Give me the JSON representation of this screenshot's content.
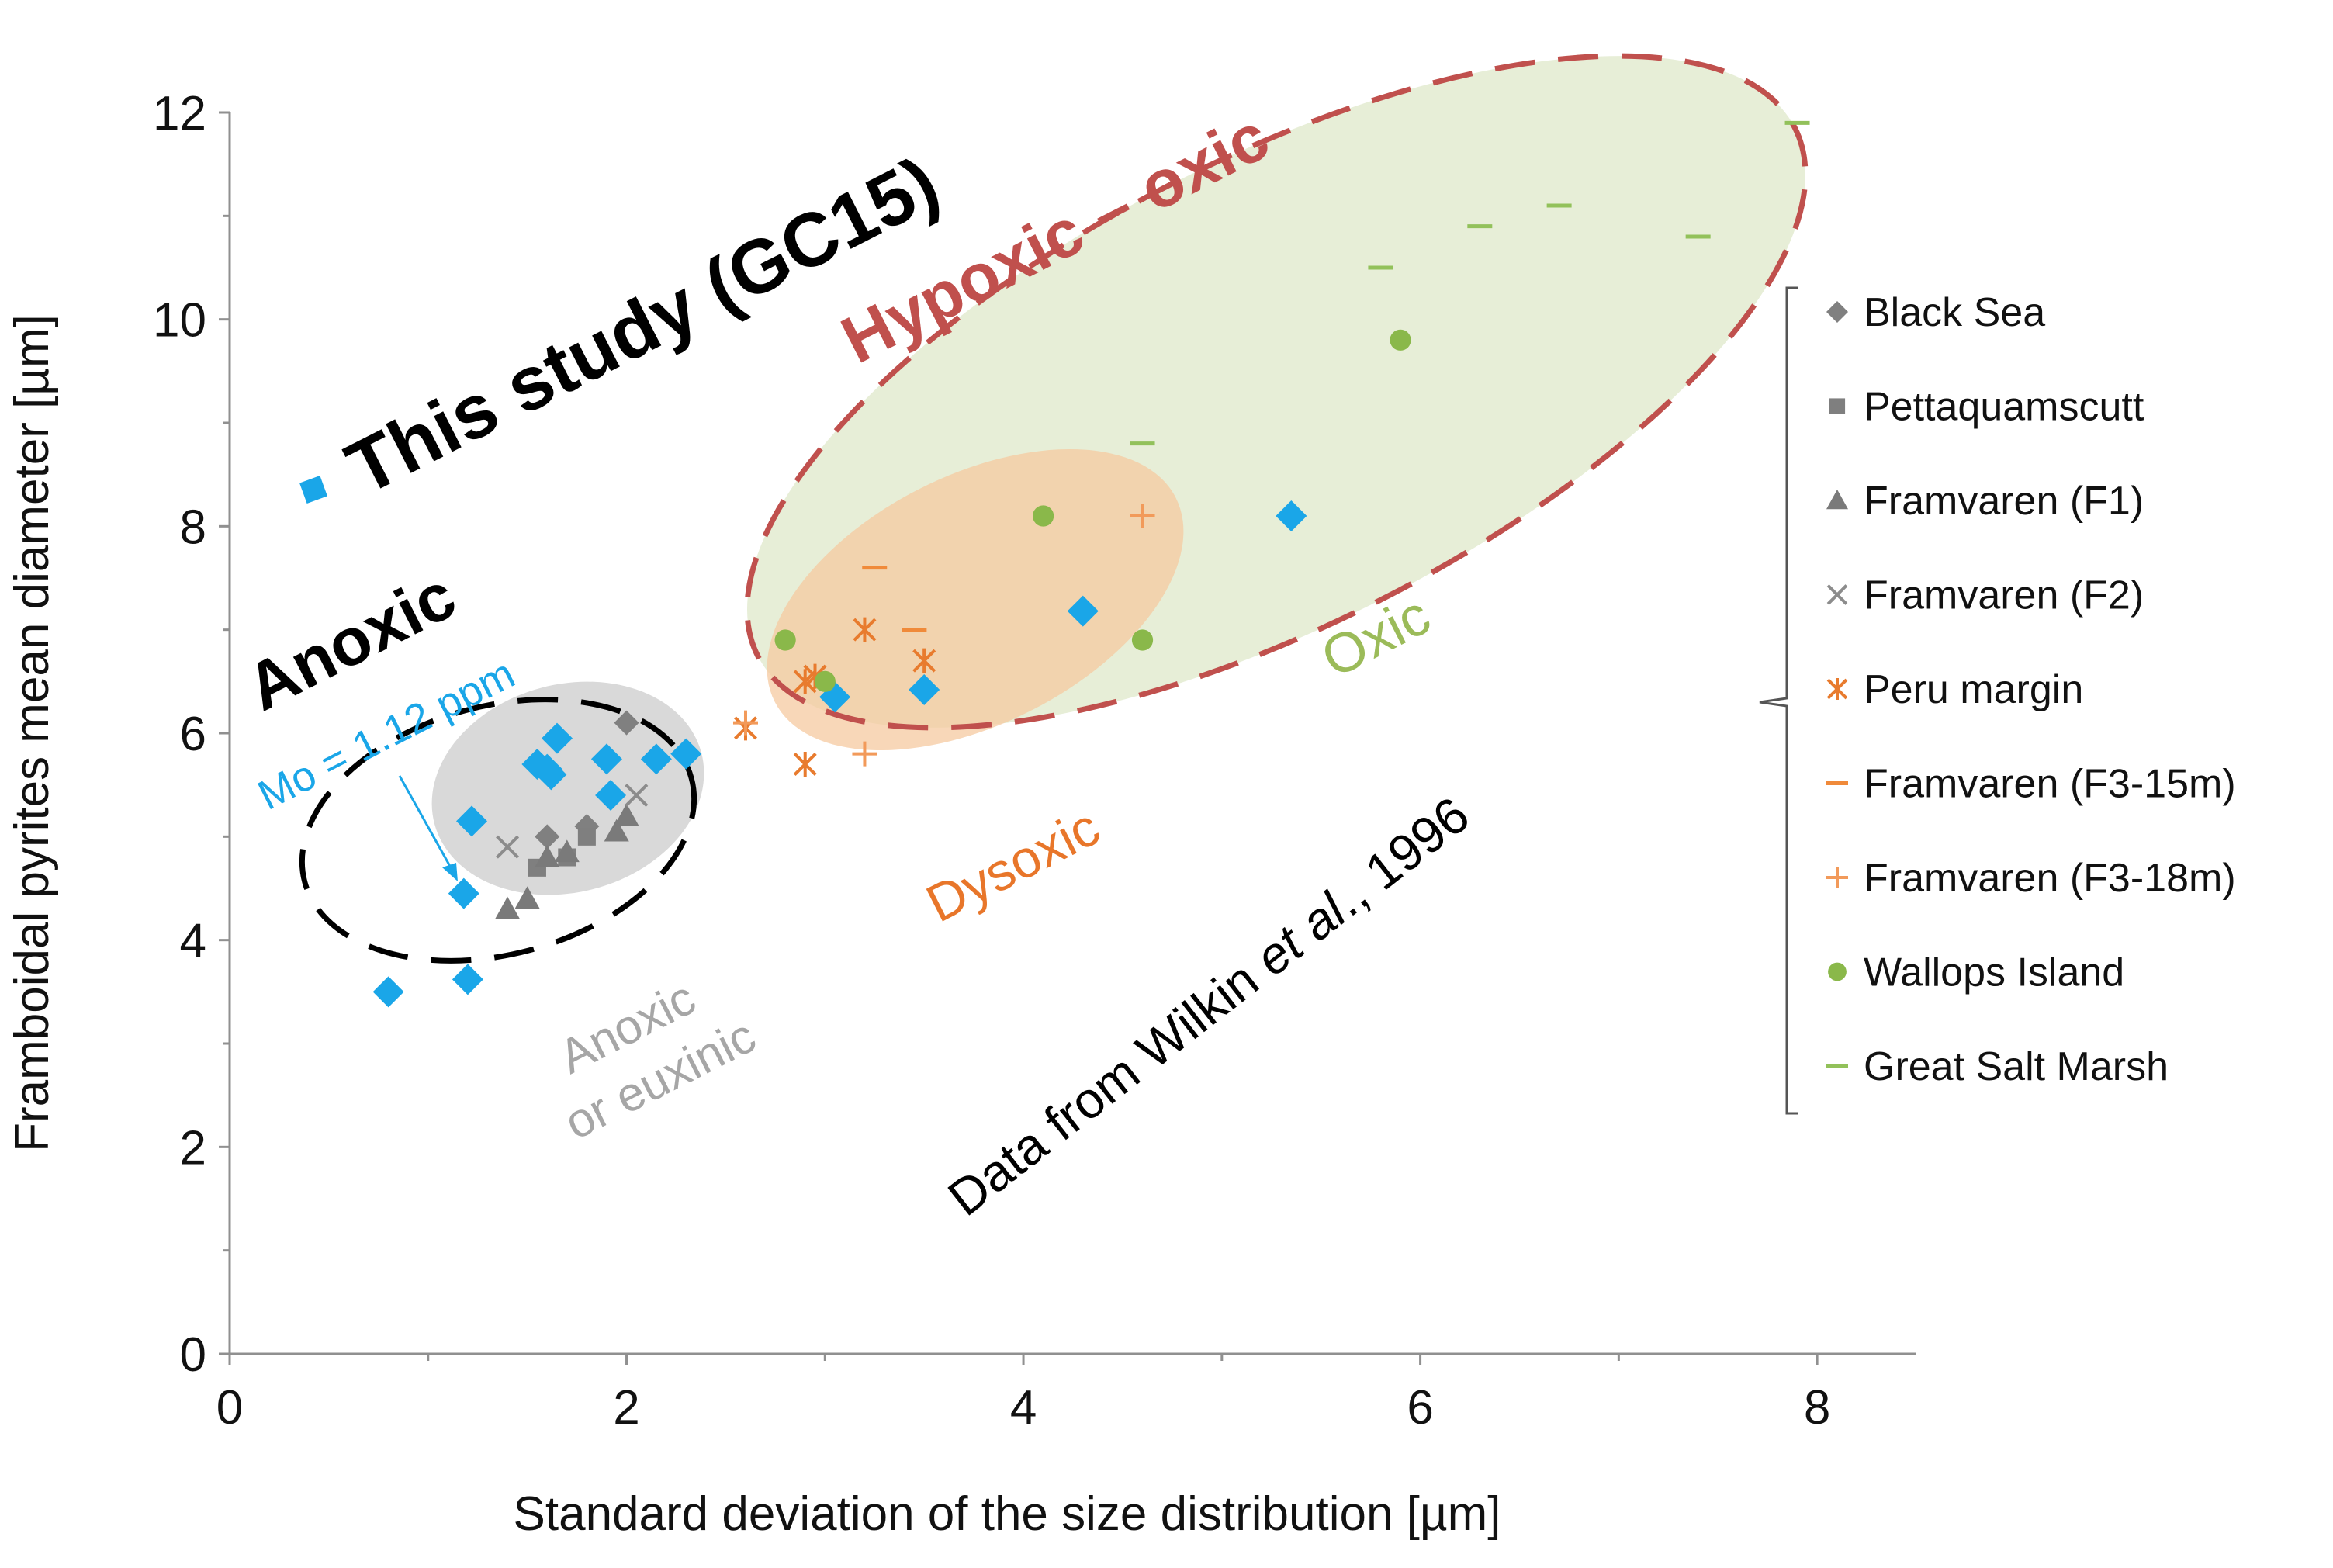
{
  "chart_data": {
    "type": "scatter",
    "title": "",
    "xlabel": "Standard deviation of the size distribution [µm]",
    "ylabel": "Framboidal pyrites mean diameter [µm]",
    "xlim": [
      0,
      8.5
    ],
    "ylim": [
      0,
      12
    ],
    "x_ticks": [
      "0",
      "2",
      "4",
      "6",
      "8"
    ],
    "y_ticks": [
      "0",
      "2",
      "4",
      "6",
      "8",
      "10",
      "12"
    ],
    "grid": false,
    "colors": {
      "this_study": "#1aa6e8",
      "black_sea": "#808080",
      "pettaquamscutt": "#7f7f7f",
      "framvaren_f1": "#7a7a7a",
      "framvaren_f2": "#8c8c8c",
      "peru": "#e87b2e",
      "framvaren_f3_15": "#f08a3a",
      "framvaren_f3_18": "#f29a5a",
      "wallops": "#8ab84a",
      "great_salt": "#92c15a",
      "hypoxic_outline": "#c0504d",
      "oxic_fill": "#e4ecd3",
      "dysoxic_fill": "#f5c9a0",
      "anoxic_fill": "#d9d9d9"
    },
    "annotations": {
      "this_study": "This study (GC15)",
      "hypoxic": "Hypoxic – oxic",
      "anoxic": "Anoxic",
      "mo": "Mo = 1.12 ppm",
      "anoxic_euxinic_line1": "Anoxic",
      "anoxic_euxinic_line2": "or euxinic",
      "dysoxic": "Dysoxic",
      "oxic": "Oxic",
      "wilkin_prefix": "Data from Wilkin ",
      "wilkin_etal": "et al",
      "wilkin_suffix": "., 1996"
    },
    "legend_position": "right",
    "series": [
      {
        "name": "This study (GC15)",
        "marker": "diamond",
        "color": "#1aa6e8",
        "x": [
          0.8,
          1.2,
          1.18,
          1.22,
          1.55,
          1.6,
          1.62,
          1.65,
          1.9,
          1.92,
          2.15,
          2.3,
          3.05,
          3.5,
          4.3,
          5.35
        ],
        "y": [
          3.5,
          3.62,
          4.45,
          5.15,
          5.7,
          5.65,
          5.6,
          5.95,
          5.75,
          5.4,
          5.75,
          5.8,
          6.35,
          6.42,
          7.18,
          8.1
        ]
      },
      {
        "name": "Black Sea",
        "marker": "diamond",
        "color": "#808080",
        "x": [
          1.6,
          1.8,
          2.0
        ],
        "y": [
          5.0,
          5.1,
          6.1
        ]
      },
      {
        "name": "Pettaquamscutt",
        "marker": "square",
        "color": "#7f7f7f",
        "x": [
          1.55,
          1.7,
          1.8
        ],
        "y": [
          4.7,
          4.8,
          5.0
        ]
      },
      {
        "name": "Framvaren (F1)",
        "marker": "triangle",
        "color": "#7a7a7a",
        "x": [
          1.4,
          1.5,
          1.6,
          1.7,
          2.0,
          1.95
        ],
        "y": [
          4.3,
          4.4,
          4.8,
          4.85,
          5.2,
          5.05
        ]
      },
      {
        "name": "Framvaren (F2)",
        "marker": "x",
        "color": "#8c8c8c",
        "x": [
          1.4,
          2.05
        ],
        "y": [
          4.9,
          5.4
        ]
      },
      {
        "name": "Peru margin",
        "marker": "asterisk",
        "color": "#e87b2e",
        "x": [
          2.6,
          2.9,
          2.95,
          3.2,
          3.5,
          2.9
        ],
        "y": [
          6.05,
          6.5,
          6.55,
          7.0,
          6.7,
          5.7
        ]
      },
      {
        "name": "Framvaren (F3-15m)",
        "marker": "dash",
        "color": "#f08a3a",
        "x": [
          3.25,
          3.45
        ],
        "y": [
          7.6,
          7.0
        ]
      },
      {
        "name": "Framvaren (F3-18m)",
        "marker": "plus",
        "color": "#f29a5a",
        "x": [
          4.6,
          3.2,
          2.6
        ],
        "y": [
          8.1,
          5.8,
          6.1
        ]
      },
      {
        "name": "Wallops Island",
        "marker": "circle",
        "color": "#8ab84a",
        "x": [
          2.8,
          3.0,
          4.1,
          4.6,
          5.9
        ],
        "y": [
          6.9,
          6.5,
          8.1,
          6.9,
          9.8
        ]
      },
      {
        "name": "Great Salt Marsh",
        "marker": "dash",
        "color": "#92c15a",
        "x": [
          4.6,
          5.8,
          6.3,
          6.7,
          7.4,
          7.9
        ],
        "y": [
          8.8,
          10.5,
          10.9,
          11.1,
          10.8,
          11.9
        ]
      }
    ],
    "legend": [
      {
        "label": "Black Sea",
        "marker": "diamond",
        "color": "#808080"
      },
      {
        "label": "Pettaquamscutt",
        "marker": "square",
        "color": "#7f7f7f"
      },
      {
        "label": "Framvaren (F1)",
        "marker": "triangle",
        "color": "#7a7a7a"
      },
      {
        "label": "Framvaren (F2)",
        "marker": "x",
        "color": "#8c8c8c"
      },
      {
        "label": "Peru margin",
        "marker": "asterisk",
        "color": "#e87b2e"
      },
      {
        "label": "Framvaren (F3-15m)",
        "marker": "dash",
        "color": "#f08a3a"
      },
      {
        "label": "Framvaren (F3-18m)",
        "marker": "plus",
        "color": "#f29a5a"
      },
      {
        "label": "Wallops Island",
        "marker": "circle",
        "color": "#8ab84a"
      },
      {
        "label": "Great Salt Marsh",
        "marker": "dash",
        "color": "#92c15a"
      }
    ]
  }
}
